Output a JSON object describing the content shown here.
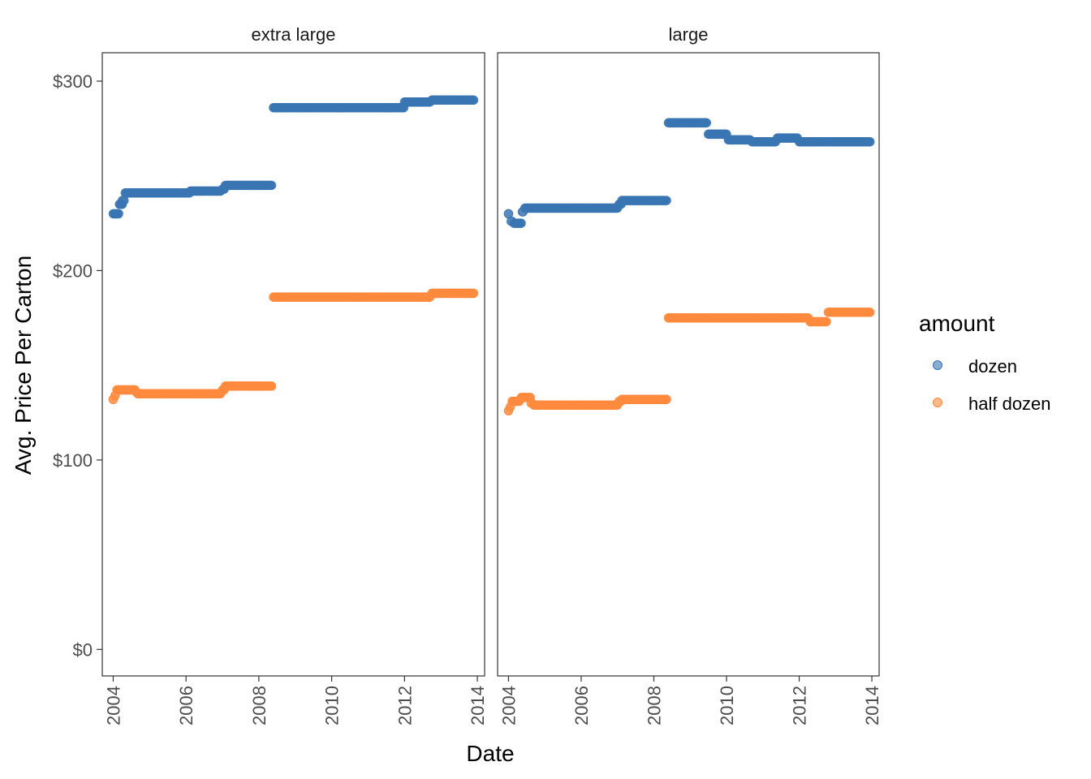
{
  "chart_data": {
    "type": "scatter",
    "xlabel": "Date",
    "ylabel": "Avg. Price Per Carton",
    "xlim": [
      2003.7,
      2014.2
    ],
    "ylim": [
      -14,
      315
    ],
    "x_ticks": [
      2004,
      2006,
      2008,
      2010,
      2012,
      2014
    ],
    "x_tick_labels": [
      "2004",
      "2006",
      "2008",
      "2010",
      "2012",
      "2014"
    ],
    "y_ticks": [
      0,
      100,
      200,
      300
    ],
    "y_tick_labels": [
      "$0",
      "$100",
      "$200",
      "$300"
    ],
    "grid": false,
    "legend": {
      "title": "amount",
      "placement": "right",
      "entries": [
        {
          "label": "dozen",
          "color": "#3a75b3"
        },
        {
          "label": "half dozen",
          "color": "#ff8a3d"
        }
      ]
    },
    "marker_opacity": 0.6,
    "facets": [
      {
        "title": "extra large",
        "series": [
          {
            "name": "dozen",
            "color": "#3a75b3",
            "steps": [
              [
                2004.0,
                2004.15,
                230
              ],
              [
                2004.17,
                2004.25,
                235
              ],
              [
                2004.25,
                2004.3,
                237
              ],
              [
                2004.33,
                2006.1,
                241
              ],
              [
                2006.12,
                2006.95,
                242
              ],
              [
                2007.0,
                2007.05,
                243
              ],
              [
                2007.08,
                2008.35,
                245
              ],
              [
                2008.4,
                2011.98,
                286
              ],
              [
                2012.0,
                2012.7,
                289
              ],
              [
                2012.75,
                2013.9,
                290
              ]
            ]
          },
          {
            "name": "half dozen",
            "color": "#ff8a3d",
            "steps": [
              [
                2004.0,
                2004.0,
                132
              ],
              [
                2004.05,
                2004.05,
                134
              ],
              [
                2004.1,
                2004.6,
                137
              ],
              [
                2004.63,
                2004.63,
                136
              ],
              [
                2004.67,
                2006.95,
                135
              ],
              [
                2007.0,
                2007.05,
                137
              ],
              [
                2007.08,
                2008.35,
                139
              ],
              [
                2008.4,
                2012.7,
                186
              ],
              [
                2012.75,
                2013.9,
                188
              ]
            ]
          }
        ]
      },
      {
        "title": "large",
        "series": [
          {
            "name": "dozen",
            "color": "#3a75b3",
            "steps": [
              [
                2004.0,
                2004.0,
                230
              ],
              [
                2004.07,
                2004.1,
                226
              ],
              [
                2004.15,
                2004.35,
                225
              ],
              [
                2004.38,
                2004.4,
                231
              ],
              [
                2004.45,
                2007.0,
                233
              ],
              [
                2007.04,
                2007.1,
                235
              ],
              [
                2007.12,
                2008.35,
                237
              ],
              [
                2008.4,
                2009.45,
                278
              ],
              [
                2009.5,
                2010.0,
                272
              ],
              [
                2010.05,
                2010.65,
                269
              ],
              [
                2010.7,
                2011.35,
                268
              ],
              [
                2011.4,
                2011.95,
                270
              ],
              [
                2012.0,
                2013.95,
                268
              ]
            ]
          },
          {
            "name": "half dozen",
            "color": "#ff8a3d",
            "steps": [
              [
                2004.0,
                2004.0,
                126
              ],
              [
                2004.05,
                2004.05,
                128
              ],
              [
                2004.1,
                2004.3,
                131
              ],
              [
                2004.35,
                2004.6,
                133
              ],
              [
                2004.62,
                2004.65,
                130
              ],
              [
                2004.7,
                2007.0,
                129
              ],
              [
                2007.04,
                2007.1,
                131
              ],
              [
                2007.12,
                2008.35,
                132
              ],
              [
                2008.4,
                2012.25,
                175
              ],
              [
                2012.3,
                2012.75,
                173
              ],
              [
                2012.8,
                2013.95,
                178
              ]
            ]
          }
        ]
      }
    ]
  }
}
